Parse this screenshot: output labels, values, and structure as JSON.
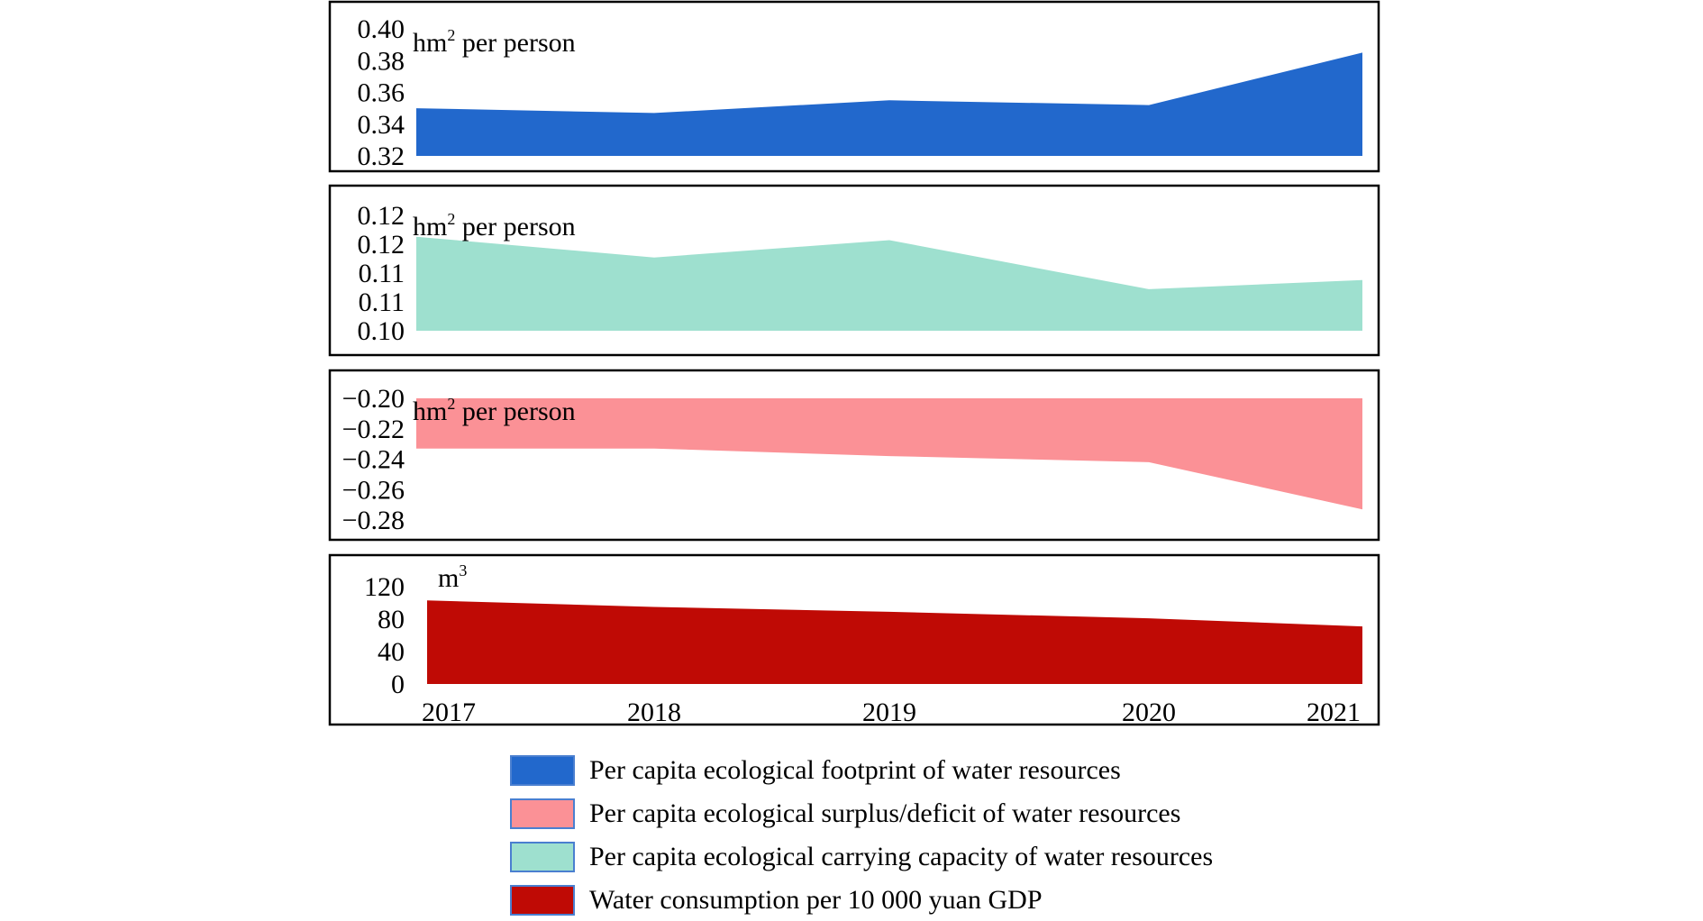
{
  "chart_data": {
    "type": "area",
    "x": [
      "2017",
      "2018",
      "2019",
      "2020",
      "2021"
    ],
    "panels": [
      {
        "unit": "hm² per person",
        "unit_base": "hm",
        "unit_sup": "2",
        "unit_rest": " per person",
        "series_name": "Per capita ecological footprint of water resources",
        "color": "#2268cc",
        "ylim": [
          0.32,
          0.4
        ],
        "ytick_values": [
          0.32,
          0.34,
          0.36,
          0.38,
          0.4
        ],
        "ytick_labels": [
          "0.32",
          "0.34",
          "0.36",
          "0.38",
          "0.40"
        ],
        "values": [
          0.35,
          0.347,
          0.355,
          0.352,
          0.385
        ],
        "baseline": 0.32
      },
      {
        "unit": "hm² per person",
        "unit_base": "hm",
        "unit_sup": "2",
        "unit_rest": " per person",
        "series_name": "Per capita ecological carrying capacity of water resources",
        "color": "#9ee0cf",
        "ylim": [
          0.1,
          0.12
        ],
        "ytick_values": [
          0.1,
          0.105,
          0.11,
          0.115,
          0.12
        ],
        "ytick_labels": [
          "0.10",
          "0.11",
          "0.11",
          "0.12",
          "0.12"
        ],
        "values": [
          0.1163,
          0.1127,
          0.1157,
          0.1072,
          0.1088
        ],
        "baseline": 0.1
      },
      {
        "unit": "hm² per person",
        "unit_base": "hm",
        "unit_sup": "2",
        "unit_rest": " per person",
        "series_name": "Per capita ecological surplus/deficit of water resources",
        "color": "#fb9196",
        "ylim": [
          -0.28,
          -0.2
        ],
        "ytick_values": [
          -0.2,
          -0.22,
          -0.24,
          -0.26,
          -0.28
        ],
        "ytick_labels": [
          "−0.20",
          "−0.22",
          "−0.24",
          "−0.26",
          "−0.28"
        ],
        "values": [
          -0.233,
          -0.233,
          -0.238,
          -0.242,
          -0.273
        ],
        "baseline": -0.2
      },
      {
        "unit": "m³",
        "unit_base": "m",
        "unit_sup": "3",
        "unit_rest": "",
        "series_name": "Water consumption per 10 000 yuan GDP",
        "color": "#bf0a05",
        "ylim": [
          0,
          120
        ],
        "ytick_values": [
          0,
          40,
          80,
          120
        ],
        "ytick_labels": [
          "0",
          "40",
          "80",
          "120"
        ],
        "values": [
          103,
          95,
          89,
          81,
          71
        ],
        "baseline": 0
      }
    ],
    "legend": [
      {
        "label": "Per capita ecological footprint of water resources",
        "color": "#2268cc"
      },
      {
        "label": "Per capita ecological surplus/deficit of water resources",
        "color": "#fb9196"
      },
      {
        "label": "Per capita ecological carrying capacity of water resources",
        "color": "#9ee0cf"
      },
      {
        "label": "Water consumption per 10 000 yuan GDP",
        "color": "#bf0a05"
      }
    ],
    "legend_placement": "bottom",
    "grid": false
  }
}
